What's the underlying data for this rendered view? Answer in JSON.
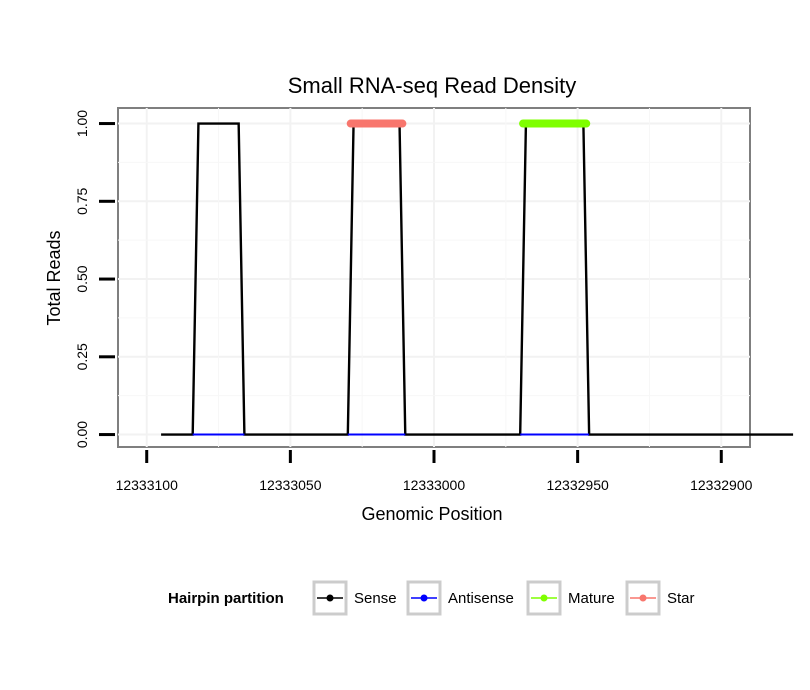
{
  "chart_data": {
    "type": "line",
    "title": "Small RNA-seq Read Density",
    "xlabel": "Genomic Position",
    "ylabel": "Total Reads",
    "xlim": [
      12333110,
      12332890
    ],
    "x_reversed": true,
    "ylim": [
      -0.04,
      1.05
    ],
    "x_ticks": [
      12333100,
      12333050,
      12333000,
      12332950,
      12332900
    ],
    "x_tick_labels": [
      "12333100",
      "12333050",
      "12333000",
      "12332950",
      "12332900"
    ],
    "y_ticks": [
      0.0,
      0.25,
      0.5,
      0.75,
      1.0
    ],
    "y_tick_labels": [
      "0.00",
      "0.25",
      "0.50",
      "0.75",
      "1.00"
    ],
    "grid": true,
    "legend": {
      "title": "Hairpin partition",
      "position": "bottom",
      "entries": [
        {
          "label": "Sense",
          "color": "#000000"
        },
        {
          "label": "Antisense",
          "color": "#0000ff"
        },
        {
          "label": "Mature",
          "color": "#7fff00"
        },
        {
          "label": "Star",
          "color": "#f8766d"
        }
      ]
    },
    "series": [
      {
        "name": "Sense",
        "color": "#000000",
        "x": [
          12333095,
          12333084,
          12333082,
          12333068,
          12333066,
          12333030,
          12333028,
          12333012,
          12333010,
          12332970,
          12332968,
          12332948,
          12332946,
          12332875
        ],
        "y": [
          0,
          0,
          1,
          1,
          0,
          0,
          1,
          1,
          0,
          0,
          1,
          1,
          0,
          0
        ]
      },
      {
        "name": "Antisense",
        "color": "#0000ff",
        "segments": [
          [
            12333084,
            12333066
          ],
          [
            12333030,
            12333010
          ],
          [
            12332970,
            12332946
          ]
        ],
        "y": 0
      },
      {
        "name": "Mature",
        "color": "#7fff00",
        "x": [
          12332969,
          12332947
        ],
        "y": [
          1,
          1
        ]
      },
      {
        "name": "Star",
        "color": "#f8766d",
        "x": [
          12333029,
          12333011
        ],
        "y": [
          1,
          1
        ]
      }
    ]
  }
}
